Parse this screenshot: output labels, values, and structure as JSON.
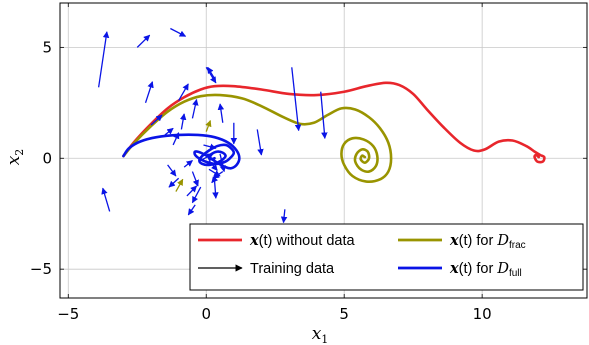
{
  "chart_data": {
    "type": "line",
    "title": "",
    "xlabel": "x",
    "xlabel_sub": "1",
    "ylabel": "x",
    "ylabel_sub": "2",
    "xlim": [
      -5.3,
      13.8
    ],
    "ylim": [
      -6.3,
      7.0
    ],
    "xticks": [
      -5,
      0,
      5,
      10
    ],
    "xtick_labels": [
      "−5",
      "0",
      "5",
      "10"
    ],
    "yticks": [
      -5,
      0,
      5
    ],
    "ytick_labels": [
      "−5",
      "0",
      "5"
    ],
    "grid": true,
    "legend_position": "bottom-right",
    "legend": [
      {
        "key": "no_data",
        "math": "x",
        "mid": "(t) without data",
        "cal": "",
        "sub": "",
        "color": "#e8262c",
        "kind": "line"
      },
      {
        "key": "frac",
        "math": "x",
        "mid": "(t) for ",
        "cal": "D",
        "sub": "frac",
        "color": "#999400",
        "kind": "line"
      },
      {
        "key": "train",
        "math": "",
        "mid": "Training data",
        "cal": "",
        "sub": "",
        "color": "#000000",
        "kind": "arrow"
      },
      {
        "key": "full",
        "math": "x",
        "mid": "(t) for ",
        "cal": "D",
        "sub": "full",
        "color": "#0a14e6",
        "kind": "line"
      }
    ],
    "series": [
      {
        "key": "no_data",
        "color": "#e8262c",
        "x": [
          -3.0,
          -2.6,
          -2.0,
          -1.4,
          -0.8,
          -0.2,
          0.3,
          1.0,
          2.0,
          3.0,
          4.0,
          5.0,
          5.8,
          6.5,
          7.0,
          7.5,
          8.0,
          8.6,
          9.2,
          9.7,
          10.1,
          10.6,
          11.1,
          11.6,
          11.9,
          12.1,
          12.25,
          12.2,
          12.0,
          11.9,
          11.95,
          12.05
        ],
        "y": [
          0.1,
          0.75,
          1.55,
          2.25,
          2.75,
          3.1,
          3.25,
          3.25,
          3.1,
          2.9,
          2.85,
          3.0,
          3.25,
          3.4,
          3.3,
          2.9,
          2.2,
          1.4,
          0.7,
          0.35,
          0.4,
          0.75,
          0.8,
          0.55,
          0.3,
          0.15,
          0.05,
          -0.15,
          -0.15,
          0.05,
          0.15,
          0.05
        ]
      },
      {
        "key": "frac",
        "color": "#999400",
        "x": [
          -3.0,
          -2.6,
          -2.0,
          -1.4,
          -0.8,
          -0.2,
          0.5,
          1.3,
          2.0,
          2.8,
          3.4,
          3.9,
          4.4,
          4.9,
          5.4,
          5.9,
          6.3,
          6.6,
          6.7,
          6.6,
          6.3,
          5.8,
          5.3,
          5.0,
          4.9,
          5.0,
          5.3,
          5.7,
          6.05,
          6.2,
          6.15,
          5.9,
          5.6,
          5.4,
          5.45,
          5.65,
          5.85,
          5.9,
          5.75,
          5.6,
          5.65,
          5.75
        ],
        "y": [
          0.1,
          0.7,
          1.45,
          2.1,
          2.55,
          2.8,
          2.85,
          2.7,
          2.35,
          1.85,
          1.55,
          1.6,
          1.95,
          2.25,
          2.2,
          1.85,
          1.35,
          0.7,
          0.0,
          -0.6,
          -0.95,
          -1.05,
          -0.8,
          -0.3,
          0.2,
          0.65,
          0.9,
          0.85,
          0.55,
          0.1,
          -0.35,
          -0.6,
          -0.5,
          -0.15,
          0.2,
          0.4,
          0.3,
          0.0,
          -0.2,
          -0.05,
          0.12,
          0.05
        ]
      },
      {
        "key": "full",
        "color": "#0a14e6",
        "x": [
          -3.0,
          -2.8,
          -2.4,
          -1.8,
          -1.0,
          -0.3,
          0.3,
          0.8,
          1.1,
          1.2,
          1.1,
          0.9,
          0.7,
          0.4,
          0.1,
          -0.2,
          -0.4,
          -0.4,
          -0.2,
          0.1,
          0.4,
          0.7,
          0.9,
          1.0,
          0.9,
          0.7,
          0.4,
          0.1,
          -0.15,
          -0.25,
          -0.15,
          0.1,
          0.4,
          0.6,
          0.7,
          0.6,
          0.4,
          0.2,
          0.1,
          0.15,
          0.3
        ],
        "y": [
          0.1,
          0.45,
          0.75,
          0.95,
          1.05,
          1.05,
          0.95,
          0.7,
          0.35,
          0.0,
          -0.3,
          -0.45,
          -0.4,
          -0.2,
          0.05,
          0.25,
          0.3,
          0.15,
          -0.05,
          -0.2,
          -0.25,
          -0.15,
          0.05,
          0.25,
          0.45,
          0.6,
          0.55,
          0.35,
          0.1,
          -0.1,
          -0.25,
          -0.3,
          -0.2,
          -0.05,
          0.1,
          0.25,
          0.3,
          0.2,
          0.05,
          -0.05,
          0.0
        ]
      }
    ],
    "arrows": [
      {
        "x": -3.9,
        "y": 3.2,
        "dx": 0.3,
        "dy": 2.5,
        "color": "#0a14e6"
      },
      {
        "x": -2.5,
        "y": 5.0,
        "dx": 0.45,
        "dy": 0.55,
        "color": "#0a14e6"
      },
      {
        "x": -1.3,
        "y": 5.85,
        "dx": 0.55,
        "dy": -0.35,
        "color": "#0a14e6"
      },
      {
        "x": -2.2,
        "y": 2.5,
        "dx": 0.25,
        "dy": 0.95,
        "color": "#0a14e6"
      },
      {
        "x": -1.0,
        "y": 2.6,
        "dx": 0.35,
        "dy": 0.75,
        "color": "#0a14e6"
      },
      {
        "x": 0.3,
        "y": 3.6,
        "dx": -0.25,
        "dy": 0.5,
        "color": "#0a14e6"
      },
      {
        "x": 0.0,
        "y": 4.1,
        "dx": 0.35,
        "dy": -0.7,
        "color": "#0a14e6"
      },
      {
        "x": -3.5,
        "y": -2.4,
        "dx": -0.25,
        "dy": 1.05,
        "color": "#0a14e6"
      },
      {
        "x": -2.0,
        "y": 1.5,
        "dx": 0.4,
        "dy": 0.45,
        "color": "#0a14e6"
      },
      {
        "x": -1.5,
        "y": 1.05,
        "dx": 0.3,
        "dy": 0.3,
        "color": "#0a14e6"
      },
      {
        "x": -1.2,
        "y": 0.6,
        "dx": 0.2,
        "dy": 0.55,
        "color": "#0a14e6"
      },
      {
        "x": -0.9,
        "y": 1.3,
        "dx": 0.1,
        "dy": 0.7,
        "color": "#0a14e6"
      },
      {
        "x": -0.5,
        "y": 1.8,
        "dx": 0.15,
        "dy": 0.85,
        "color": "#0a14e6"
      },
      {
        "x": 0.6,
        "y": 1.6,
        "dx": -0.1,
        "dy": 0.85,
        "color": "#0a14e6"
      },
      {
        "x": 1.0,
        "y": 1.6,
        "dx": 0.0,
        "dy": -0.95,
        "color": "#0a14e6"
      },
      {
        "x": 1.85,
        "y": 1.3,
        "dx": 0.15,
        "dy": -1.15,
        "color": "#0a14e6"
      },
      {
        "x": 3.1,
        "y": 4.1,
        "dx": 0.25,
        "dy": -2.85,
        "color": "#0a14e6"
      },
      {
        "x": 4.15,
        "y": 3.0,
        "dx": 0.15,
        "dy": -2.1,
        "color": "#0a14e6"
      },
      {
        "x": -1.4,
        "y": -0.3,
        "dx": 0.3,
        "dy": -0.5,
        "color": "#0a14e6"
      },
      {
        "x": -1.0,
        "y": -0.9,
        "dx": -0.35,
        "dy": -0.4,
        "color": "#0a14e6"
      },
      {
        "x": -0.5,
        "y": -0.6,
        "dx": 0.2,
        "dy": -0.65,
        "color": "#0a14e6"
      },
      {
        "x": -0.2,
        "y": -1.3,
        "dx": -0.3,
        "dy": -0.7,
        "color": "#0a14e6"
      },
      {
        "x": -0.4,
        "y": -2.1,
        "dx": -0.25,
        "dy": -0.45,
        "color": "#0a14e6"
      },
      {
        "x": 0.3,
        "y": -1.0,
        "dx": 0.05,
        "dy": -0.8,
        "color": "#0a14e6"
      },
      {
        "x": -0.7,
        "y": -1.7,
        "dx": 0.35,
        "dy": 0.45,
        "color": "#0a14e6"
      },
      {
        "x": -0.2,
        "y": -0.1,
        "dx": 0.45,
        "dy": 0.3,
        "color": "#0a14e6"
      },
      {
        "x": 0.1,
        "y": -0.5,
        "dx": 0.4,
        "dy": -0.3,
        "color": "#0a14e6"
      },
      {
        "x": 0.5,
        "y": 0.2,
        "dx": 0.15,
        "dy": -0.8,
        "color": "#0a14e6"
      },
      {
        "x": 0.6,
        "y": -0.6,
        "dx": -0.35,
        "dy": -0.3,
        "color": "#0a14e6"
      },
      {
        "x": -0.1,
        "y": 0.6,
        "dx": 0.45,
        "dy": -0.15,
        "color": "#0a14e6"
      },
      {
        "x": -0.8,
        "y": -0.4,
        "dx": 0.3,
        "dy": 0.3,
        "color": "#0a14e6"
      },
      {
        "x": 0.1,
        "y": -0.1,
        "dx": 0.3,
        "dy": -0.45,
        "color": "#0a14e6"
      },
      {
        "x": 0.4,
        "y": -0.8,
        "dx": -0.2,
        "dy": -0.3,
        "color": "#0a14e6"
      },
      {
        "x": 2.85,
        "y": -2.3,
        "dx": -0.05,
        "dy": -0.6,
        "color": "#0a14e6"
      },
      {
        "x": -1.1,
        "y": -1.5,
        "dx": 0.25,
        "dy": 0.55,
        "color": "#999400"
      },
      {
        "x": 0.0,
        "y": 1.2,
        "dx": 0.15,
        "dy": 0.5,
        "color": "#999400"
      }
    ]
  }
}
